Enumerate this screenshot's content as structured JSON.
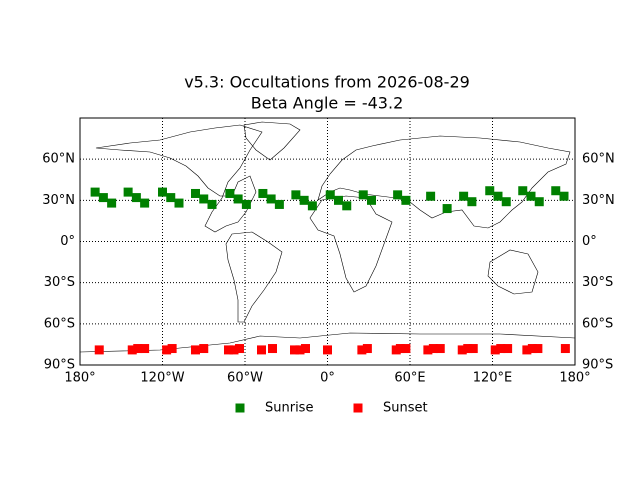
{
  "chart_data": {
    "type": "scatter",
    "title": "v5.3: Occultations from 2026-08-29",
    "subtitle": "Beta Angle = -43.2",
    "xlim": [
      -180,
      180
    ],
    "ylim": [
      -90,
      90
    ],
    "xticks": [
      {
        "value": -180,
        "label": "180°"
      },
      {
        "value": -120,
        "label": "120°W"
      },
      {
        "value": -60,
        "label": "60°W"
      },
      {
        "value": 0,
        "label": "0°"
      },
      {
        "value": 60,
        "label": "60°E"
      },
      {
        "value": 120,
        "label": "120°E"
      },
      {
        "value": 180,
        "label": "180°"
      }
    ],
    "yticks": [
      {
        "value": -90,
        "label": "90°S"
      },
      {
        "value": -60,
        "label": "60°S"
      },
      {
        "value": -30,
        "label": "30°S"
      },
      {
        "value": 0,
        "label": "0°"
      },
      {
        "value": 30,
        "label": "30°N"
      },
      {
        "value": 60,
        "label": "60°N"
      }
    ],
    "grid": true,
    "legend": "bottom",
    "series": [
      {
        "name": "Sunrise",
        "color": "#008000",
        "x": [
          -169,
          -163,
          -157,
          -145,
          -139,
          -133,
          -120,
          -114,
          -108,
          -96,
          -90,
          -84,
          -71,
          -65,
          -59,
          -47,
          -41,
          -35,
          -23,
          -17,
          -11,
          2,
          8,
          14,
          26,
          32,
          51,
          57,
          75,
          87,
          99,
          105,
          118,
          124,
          130,
          142,
          148,
          154,
          166,
          172
        ],
        "values": [
          36,
          32,
          28,
          36,
          32,
          28,
          36,
          32,
          28,
          35,
          31,
          27,
          35,
          31,
          27,
          35,
          31,
          27,
          34,
          30,
          26,
          34,
          30,
          26,
          34,
          30,
          34,
          30,
          33,
          24,
          33,
          29,
          37,
          33,
          29,
          37,
          33,
          29,
          37,
          33
        ]
      },
      {
        "name": "Sunset",
        "color": "#ff0000",
        "x": [
          -166,
          -142,
          -138,
          -133,
          -117,
          -113,
          -96,
          -90,
          -72,
          -68,
          -64,
          -48,
          -40,
          -24,
          -20,
          -16,
          0,
          25,
          29,
          50,
          53,
          57,
          73,
          77,
          82,
          98,
          102,
          106,
          122,
          126,
          131,
          145,
          149,
          153,
          173
        ],
        "values": [
          -79,
          -79,
          -78,
          -78,
          -79,
          -78,
          -79,
          -78,
          -79,
          -79,
          -78,
          -79,
          -78,
          -79,
          -79,
          -78,
          -79,
          -79,
          -78,
          -79,
          -78,
          -78,
          -79,
          -78,
          -78,
          -79,
          -78,
          -78,
          -79,
          -78,
          -78,
          -79,
          -78,
          -78,
          -78
        ]
      }
    ]
  }
}
